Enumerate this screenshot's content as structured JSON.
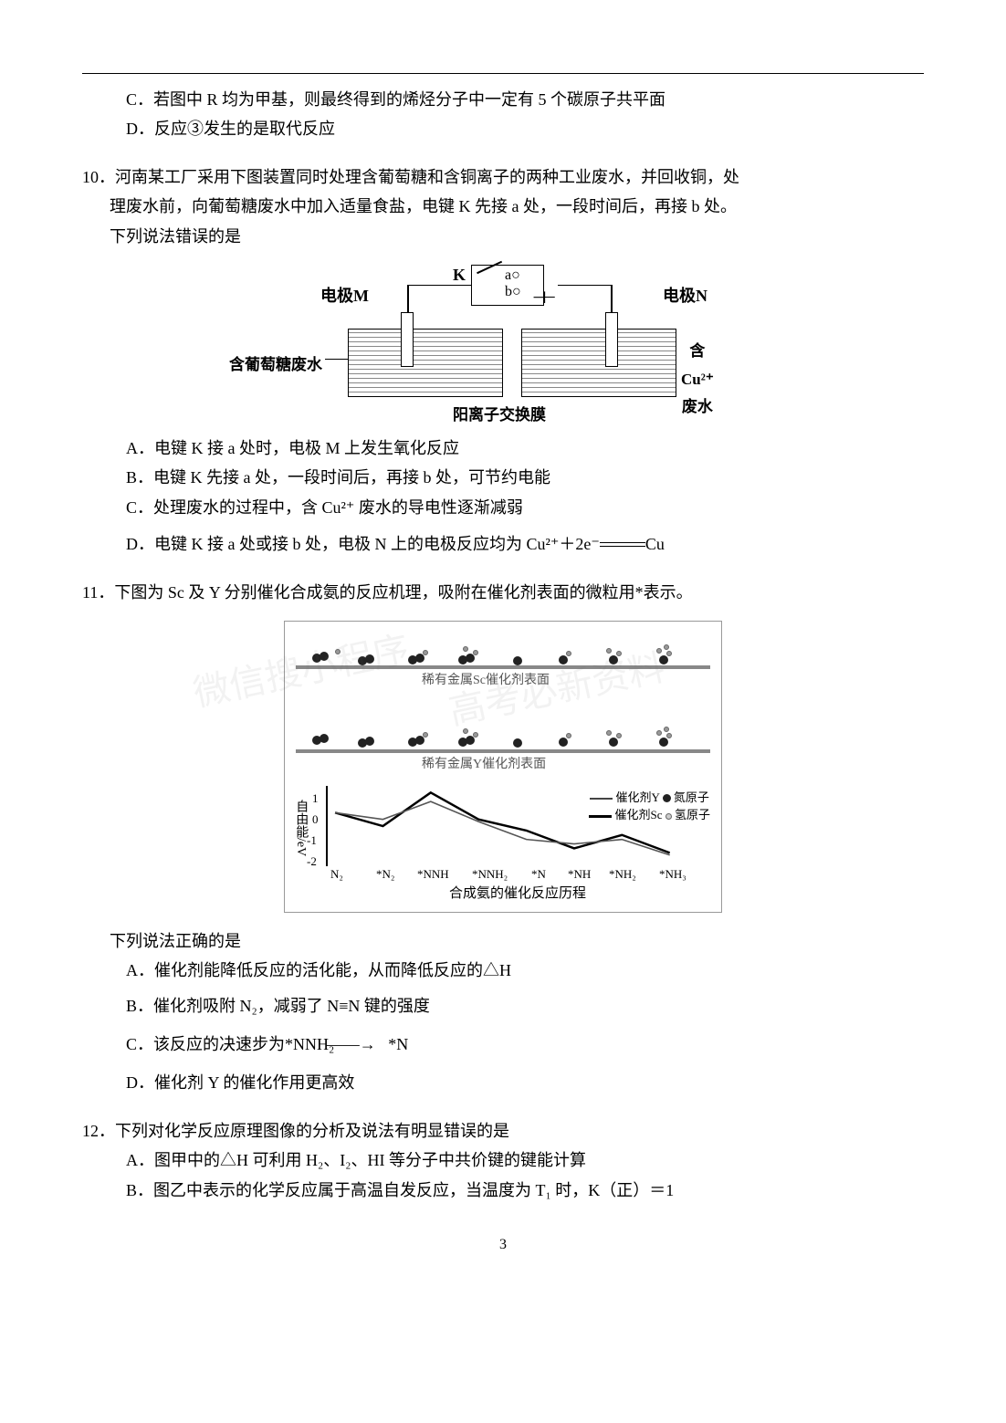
{
  "page_number": "3",
  "q_fragment": {
    "optC": "C．若图中 R 均为甲基，则最终得到的烯烃分子中一定有 5 个碳原子共平面",
    "optD": "D．反应③发生的是取代反应"
  },
  "q10": {
    "number": "10．",
    "stem1": "河南某工厂采用下图装置同时处理含葡萄糖和含铜离子的两种工业废水，并回收铜，处",
    "stem2": "理废水前，向葡萄糖废水中加入适量食盐，电键 K 先接 a 处，一段时间后，再接 b 处。",
    "stem3": "下列说法错误的是",
    "diagram": {
      "label_K": "K",
      "label_a": "a○",
      "label_b": "b○",
      "label_M": "电极M",
      "label_N": "电极N",
      "label_left": "含葡萄糖废水",
      "label_right": "含Cu²⁺废水",
      "label_bottom": "阳离子交换膜"
    },
    "optA": "A．电键 K 接 a 处时，电极 M 上发生氧化反应",
    "optB": "B．电键 K 先接 a 处，一段时间后，再接 b 处，可节约电能",
    "optC": "C．处理废水的过程中，含 Cu²⁺ 废水的导电性逐渐减弱",
    "optD_prefix": "D．电键 K 接 a 处或接 b 处，电极 N 上的电极反应均为 Cu²⁺＋2e⁻",
    "optD_suffix": "Cu"
  },
  "q11": {
    "number": "11．",
    "stem": "下图为 Sc 及 Y 分别催化合成氨的反应机理，吸附在催化剂表面的微粒用*表示。",
    "diagram": {
      "surface_sc": "稀有金属Sc催化剂表面",
      "surface_y": "稀有金属Y催化剂表面",
      "y_axis_label": "自由能/eV",
      "y_ticks": [
        "1",
        "0",
        "-1",
        "-2"
      ],
      "x_ticks": [
        "N₂",
        "*N₂",
        "*NNH",
        "*NNH₂",
        "*N",
        "*NH",
        "*NH₂",
        "*NH₃"
      ],
      "x_axis_label": "合成氨的催化反应历程",
      "legend_y": "催化剂Y",
      "legend_sc": "催化剂Sc",
      "legend_n": "氮原子",
      "legend_h": "氢原子",
      "series_sc": {
        "color": "#000000",
        "width": 2.5,
        "points": [
          [
            0,
            0
          ],
          [
            52,
            -0.6
          ],
          [
            104,
            0.9
          ],
          [
            156,
            -0.3
          ],
          [
            208,
            -0.8
          ],
          [
            260,
            -1.6
          ],
          [
            312,
            -1.0
          ],
          [
            364,
            -1.8
          ]
        ]
      },
      "series_y": {
        "color": "#555555",
        "width": 1.6,
        "points": [
          [
            0,
            0
          ],
          [
            52,
            -0.3
          ],
          [
            104,
            0.5
          ],
          [
            156,
            -0.4
          ],
          [
            208,
            -1.2
          ],
          [
            260,
            -1.4
          ],
          [
            312,
            -1.2
          ],
          [
            364,
            -1.9
          ]
        ]
      }
    },
    "sub_stem": "下列说法正确的是",
    "optA": "A．催化剂能降低反应的活化能，从而降低反应的△H",
    "optB": "B．催化剂吸附 N₂，减弱了 N≡N 键的强度",
    "optC_prefix": "C．该反应的决速步为*NNH₂",
    "optC_arrow": "→",
    "optC_suffix": "*N",
    "optD": "D．催化剂 Y 的催化作用更高效"
  },
  "q12": {
    "number": "12．",
    "stem": "下列对化学反应原理图像的分析及说法有明显错误的是",
    "optA": "A．图甲中的△H 可利用 H₂、I₂、HI 等分子中共价键的键能计算",
    "optB": "B．图乙中表示的化学反应属于高温自发反应，当温度为 T₁ 时，K（正）＝1"
  }
}
